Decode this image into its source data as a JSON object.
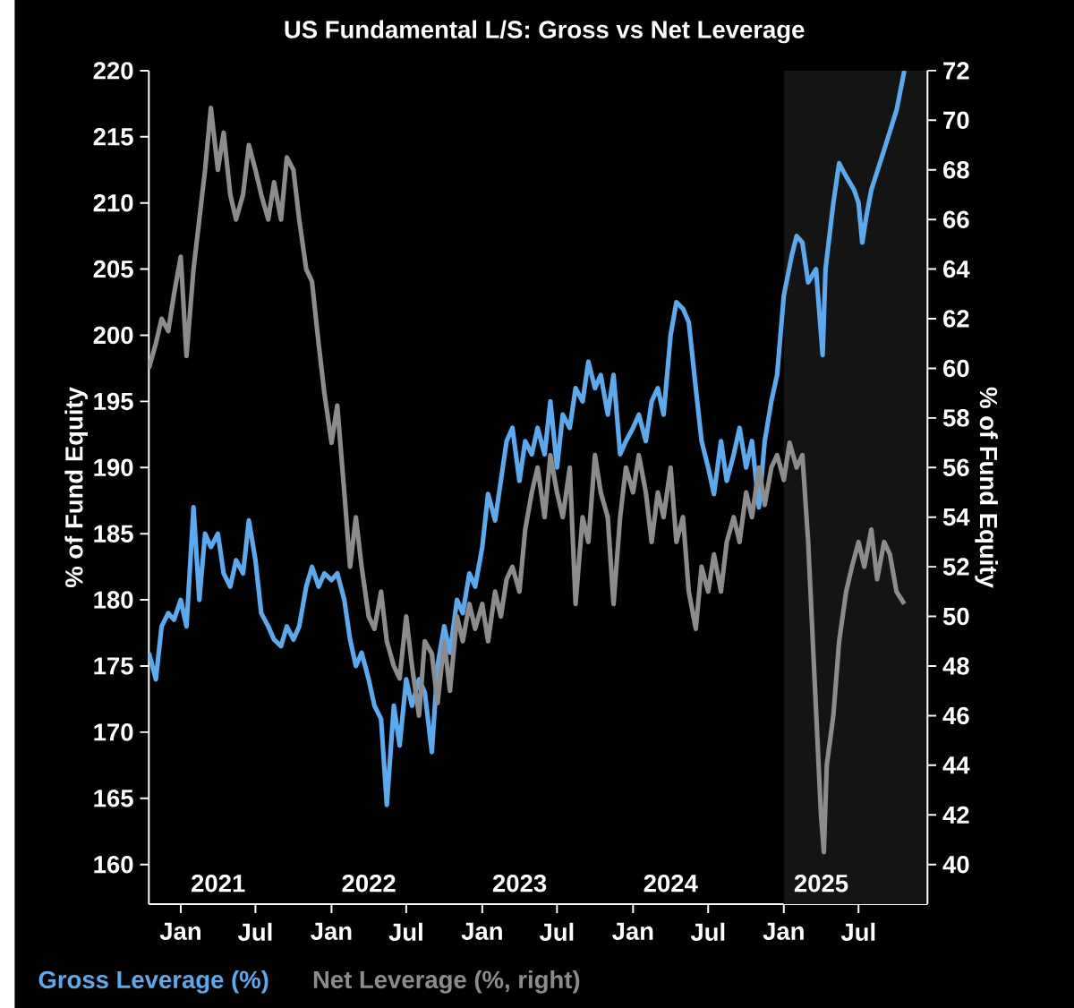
{
  "chart_data": {
    "type": "line",
    "title": "US Fundamental L/S: Gross vs Net Leverage",
    "ylabel": "% of Fund Equity",
    "y2label": "% of Fund Equity",
    "legend": "bottom",
    "xlim": [
      "2020-10-15",
      "2025-12-15"
    ],
    "xticks": [
      {
        "value": "2021-01-01",
        "label": "Jan"
      },
      {
        "value": "2021-07-01",
        "label": "Jul"
      },
      {
        "value": "2022-01-01",
        "label": "Jan"
      },
      {
        "value": "2022-07-01",
        "label": "Jul"
      },
      {
        "value": "2023-01-01",
        "label": "Jan"
      },
      {
        "value": "2023-07-01",
        "label": "Jul"
      },
      {
        "value": "2024-01-01",
        "label": "Jan"
      },
      {
        "value": "2024-07-01",
        "label": "Jul"
      },
      {
        "value": "2025-01-01",
        "label": "Jan"
      },
      {
        "value": "2025-07-01",
        "label": "Jul"
      }
    ],
    "ylim": [
      157,
      220
    ],
    "yticks": [
      160,
      165,
      170,
      175,
      180,
      185,
      190,
      195,
      200,
      205,
      210,
      215,
      220
    ],
    "y2lim": [
      38.4,
      72
    ],
    "y2ticks": [
      40,
      42,
      44,
      46,
      48,
      50,
      52,
      54,
      56,
      58,
      60,
      62,
      64,
      66,
      68,
      70,
      72
    ],
    "bands": [
      {
        "axis": "x",
        "from": "2025-01-01",
        "to": "2025-12-15",
        "color": "#141414"
      }
    ],
    "annotations": [
      "2021",
      "2022",
      "2023",
      "2024",
      "2025"
    ],
    "series": [
      {
        "name": "Gross Leverage (%)",
        "color": "#5aaaf0",
        "x": [
          "2020-10-15",
          "2020-11-01",
          "2020-11-15",
          "2020-12-01",
          "2020-12-15",
          "2021-01-01",
          "2021-01-15",
          "2021-02-01",
          "2021-02-15",
          "2021-03-01",
          "2021-03-15",
          "2021-04-01",
          "2021-04-15",
          "2021-05-01",
          "2021-05-15",
          "2021-06-01",
          "2021-06-15",
          "2021-07-01",
          "2021-07-15",
          "2021-08-01",
          "2021-08-15",
          "2021-09-01",
          "2021-09-15",
          "2021-10-01",
          "2021-10-15",
          "2021-11-01",
          "2021-11-15",
          "2021-12-01",
          "2021-12-15",
          "2022-01-01",
          "2022-01-15",
          "2022-02-01",
          "2022-02-15",
          "2022-03-01",
          "2022-03-15",
          "2022-04-01",
          "2022-04-15",
          "2022-05-01",
          "2022-05-15",
          "2022-06-01",
          "2022-06-15",
          "2022-07-01",
          "2022-07-15",
          "2022-08-01",
          "2022-08-15",
          "2022-09-01",
          "2022-09-15",
          "2022-10-01",
          "2022-10-15",
          "2022-11-01",
          "2022-11-15",
          "2022-12-01",
          "2022-12-15",
          "2023-01-01",
          "2023-01-15",
          "2023-02-01",
          "2023-02-15",
          "2023-03-01",
          "2023-03-15",
          "2023-04-01",
          "2023-04-15",
          "2023-05-01",
          "2023-05-15",
          "2023-06-01",
          "2023-06-15",
          "2023-07-01",
          "2023-07-15",
          "2023-08-01",
          "2023-08-15",
          "2023-09-01",
          "2023-09-15",
          "2023-10-01",
          "2023-10-15",
          "2023-11-01",
          "2023-11-15",
          "2023-12-01",
          "2023-12-15",
          "2024-01-01",
          "2024-01-15",
          "2024-02-01",
          "2024-02-15",
          "2024-03-01",
          "2024-03-15",
          "2024-04-01",
          "2024-04-15",
          "2024-05-01",
          "2024-05-15",
          "2024-06-01",
          "2024-06-15",
          "2024-07-01",
          "2024-07-15",
          "2024-08-01",
          "2024-08-15",
          "2024-09-01",
          "2024-09-15",
          "2024-10-01",
          "2024-10-15",
          "2024-11-01",
          "2024-11-15",
          "2024-12-01",
          "2024-12-15",
          "2025-01-01",
          "2025-01-20",
          "2025-02-01",
          "2025-02-15",
          "2025-03-01",
          "2025-03-20",
          "2025-04-05",
          "2025-04-12",
          "2025-05-01",
          "2025-05-15",
          "2025-06-01",
          "2025-06-20",
          "2025-07-01",
          "2025-07-10",
          "2025-07-20",
          "2025-08-01",
          "2025-09-01",
          "2025-10-01",
          "2025-10-20"
        ],
        "values": [
          176,
          174,
          178,
          179,
          178.5,
          180,
          178,
          187,
          180,
          185,
          184,
          185,
          182,
          181,
          183,
          182,
          186,
          183,
          179,
          178,
          177,
          176.5,
          178,
          177,
          178,
          181,
          182.5,
          181,
          182,
          181.5,
          182,
          180,
          177,
          175,
          176,
          174,
          172,
          171,
          164.5,
          172,
          169,
          174,
          172,
          174,
          173,
          168.5,
          175,
          178,
          176,
          180,
          179,
          182,
          181,
          184,
          188,
          186,
          189,
          192,
          193,
          189,
          192,
          191,
          193,
          191,
          195,
          190,
          194,
          193,
          196,
          195,
          198,
          196,
          197,
          194,
          197,
          191,
          192,
          193,
          194,
          192,
          195,
          196,
          194,
          200,
          202.5,
          202,
          201,
          196,
          192,
          190,
          188,
          192,
          189,
          191,
          193,
          190,
          192,
          187,
          192,
          195,
          197,
          203,
          206,
          207.5,
          207,
          204,
          205,
          198.5,
          205,
          210,
          213,
          212,
          211,
          210,
          207,
          209,
          211,
          214,
          217,
          220
        ]
      },
      {
        "name": "Net Leverage (%, right)",
        "color": "#8c8c8c",
        "axis": "y2",
        "x": [
          "2020-10-15",
          "2020-11-01",
          "2020-11-15",
          "2020-12-01",
          "2020-12-15",
          "2021-01-01",
          "2021-01-15",
          "2021-02-01",
          "2021-02-15",
          "2021-03-01",
          "2021-03-15",
          "2021-04-01",
          "2021-04-15",
          "2021-05-01",
          "2021-05-15",
          "2021-06-01",
          "2021-06-15",
          "2021-07-01",
          "2021-07-15",
          "2021-08-01",
          "2021-08-15",
          "2021-09-01",
          "2021-09-15",
          "2021-10-01",
          "2021-10-15",
          "2021-11-01",
          "2021-11-15",
          "2021-12-01",
          "2021-12-15",
          "2022-01-01",
          "2022-01-15",
          "2022-02-01",
          "2022-02-15",
          "2022-03-01",
          "2022-03-15",
          "2022-04-01",
          "2022-04-15",
          "2022-05-01",
          "2022-05-15",
          "2022-06-01",
          "2022-06-15",
          "2022-07-01",
          "2022-07-15",
          "2022-08-01",
          "2022-08-15",
          "2022-09-01",
          "2022-09-15",
          "2022-10-01",
          "2022-10-15",
          "2022-11-01",
          "2022-11-15",
          "2022-12-01",
          "2022-12-15",
          "2023-01-01",
          "2023-01-15",
          "2023-02-01",
          "2023-02-15",
          "2023-03-01",
          "2023-03-15",
          "2023-04-01",
          "2023-04-15",
          "2023-05-01",
          "2023-05-15",
          "2023-06-01",
          "2023-06-15",
          "2023-07-01",
          "2023-07-15",
          "2023-08-01",
          "2023-08-15",
          "2023-09-01",
          "2023-09-15",
          "2023-10-01",
          "2023-10-15",
          "2023-11-01",
          "2023-11-15",
          "2023-12-01",
          "2023-12-15",
          "2024-01-01",
          "2024-01-15",
          "2024-02-01",
          "2024-02-15",
          "2024-03-01",
          "2024-03-15",
          "2024-04-01",
          "2024-04-15",
          "2024-05-01",
          "2024-05-15",
          "2024-06-01",
          "2024-06-15",
          "2024-07-01",
          "2024-07-15",
          "2024-08-01",
          "2024-08-15",
          "2024-09-01",
          "2024-09-15",
          "2024-10-01",
          "2024-10-15",
          "2024-11-01",
          "2024-11-15",
          "2024-12-01",
          "2024-12-15",
          "2025-01-01",
          "2025-01-15",
          "2025-02-01",
          "2025-02-15",
          "2025-03-01",
          "2025-03-15",
          "2025-04-01",
          "2025-04-08",
          "2025-04-15",
          "2025-05-01",
          "2025-05-15",
          "2025-06-01",
          "2025-06-15",
          "2025-07-01",
          "2025-07-15",
          "2025-08-01",
          "2025-08-15",
          "2025-09-01",
          "2025-09-15",
          "2025-10-01",
          "2025-10-20"
        ],
        "values": [
          60,
          61,
          62,
          61.5,
          63,
          64.5,
          60.5,
          64,
          66,
          68,
          70.5,
          68,
          69.5,
          67,
          66,
          67,
          69,
          68,
          67,
          66,
          67.5,
          66,
          68.5,
          68,
          66,
          64,
          63.5,
          61,
          59,
          57,
          58.5,
          55,
          52,
          54,
          52,
          50,
          49.5,
          51,
          49,
          48,
          47.5,
          50,
          48,
          46,
          49,
          48.5,
          46.5,
          49,
          47,
          50,
          49,
          50.5,
          49.5,
          50.5,
          49,
          51,
          50,
          51.5,
          52,
          51,
          53.5,
          55,
          56,
          54,
          56.5,
          55,
          54,
          56,
          50.5,
          54,
          53,
          56.5,
          55,
          54,
          50.5,
          54,
          56,
          55,
          56.5,
          55,
          53,
          55,
          54,
          56,
          53,
          54,
          51,
          49.5,
          52,
          51,
          52.5,
          51,
          53,
          54,
          53,
          55,
          54,
          56,
          54.5,
          56,
          56.5,
          55.5,
          57,
          56,
          56.5,
          53,
          48,
          42,
          40.5,
          44,
          46,
          49,
          51,
          52,
          53,
          52,
          53.5,
          51.5,
          53,
          52.5,
          51,
          50.5
        ]
      }
    ]
  }
}
